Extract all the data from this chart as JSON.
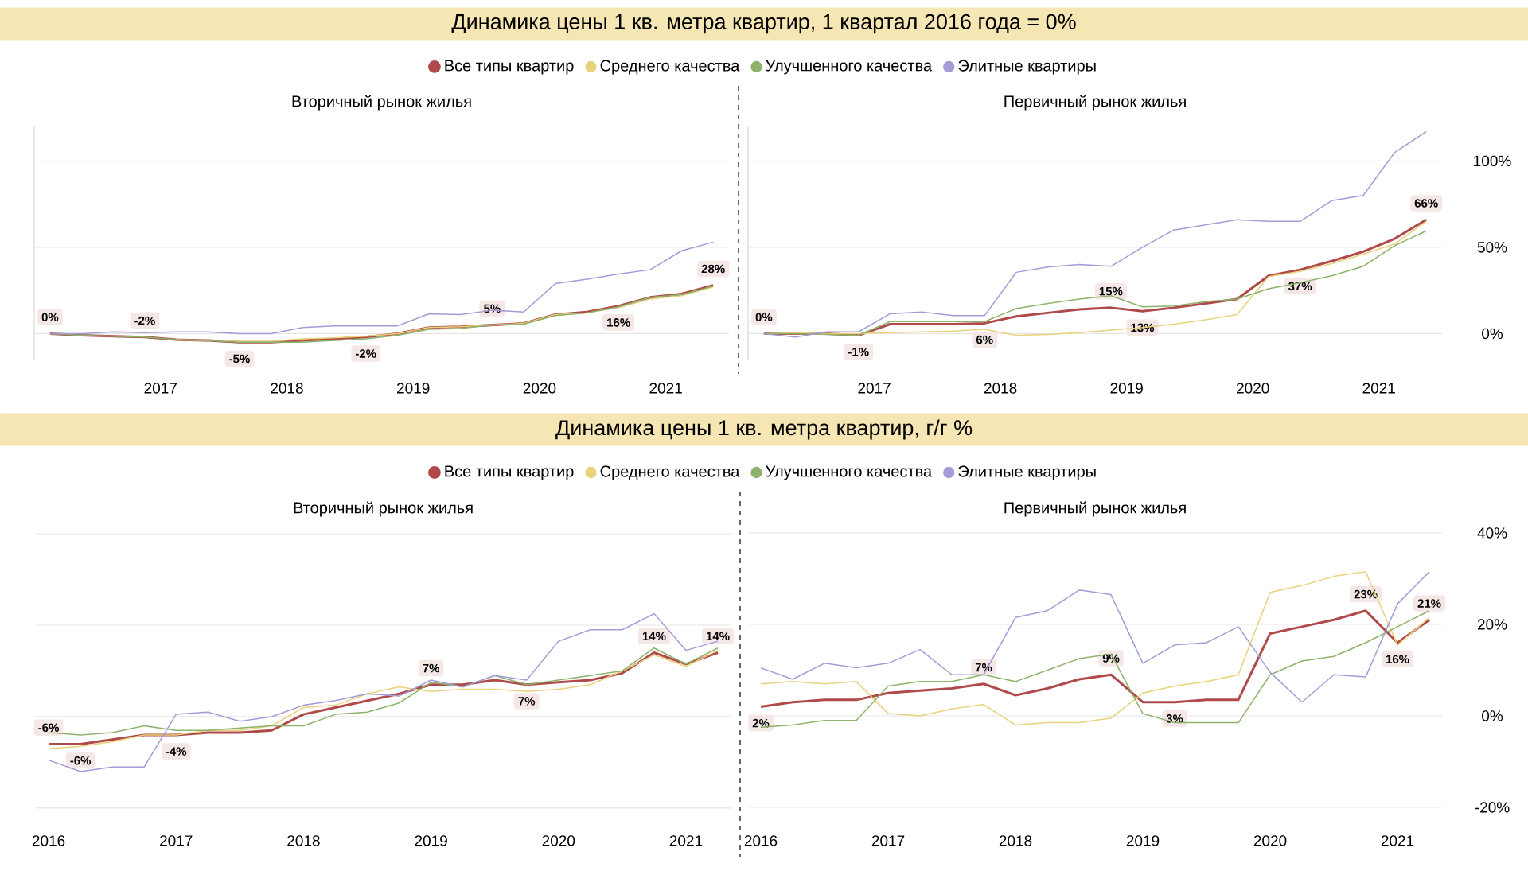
{
  "chart_data": [
    {
      "type": "line",
      "title": "Динамика цены 1 кв. метра квартир, 1 квартал 2016 года = 0%",
      "subtitle": "Вторичный рынок жилья",
      "legend": "top",
      "grid": "y",
      "tick_labels": "x",
      "x": [
        2016.125,
        2016.375,
        2016.625,
        2016.875,
        2017.125,
        2017.375,
        2017.625,
        2017.875,
        2018.125,
        2018.375,
        2018.625,
        2018.875,
        2019.125,
        2019.375,
        2019.625,
        2019.875,
        2020.125,
        2020.375,
        2020.625,
        2020.875,
        2021.125,
        2021.375
      ],
      "xlim": [
        2016,
        2021.5
      ],
      "xticks": [
        2017,
        2018,
        2019,
        2020,
        2021
      ],
      "ylim": [
        -15,
        120
      ],
      "yticks": [
        {
          "value": 0,
          "label": null
        },
        {
          "value": 50,
          "label": null
        },
        {
          "value": 100,
          "label": null
        }
      ],
      "series": [
        {
          "name": "Все типы квартир",
          "color": "#b04a4a",
          "values": [
            0,
            -1,
            -1.5,
            -2,
            -3.5,
            -4,
            -5,
            -5,
            -4,
            -3,
            -2,
            0,
            3.5,
            4,
            5,
            6,
            11,
            12.5,
            16,
            21,
            23,
            28
          ],
          "value_labels": [
            "0%",
            null,
            null,
            "-2%",
            null,
            null,
            "-5%",
            null,
            null,
            null,
            "-2%",
            null,
            null,
            null,
            "5%",
            null,
            null,
            null,
            "16%",
            null,
            null,
            "28%"
          ]
        },
        {
          "name": "Среднего качества",
          "color": "#e8d27a",
          "values": [
            null,
            null,
            null,
            null,
            -3.5,
            -4,
            -4.5,
            -4.5,
            -3,
            -2.5,
            -1.5,
            0,
            3.5,
            4,
            5,
            6,
            11,
            12,
            15,
            20,
            22,
            27
          ]
        },
        {
          "name": "Улучшенного качества",
          "color": "#8cb369",
          "values": [
            0,
            -1,
            -1.5,
            -2,
            -3.5,
            -4,
            -5,
            -5,
            -5,
            -4,
            -3,
            -1,
            2.5,
            3,
            5,
            5.5,
            10.5,
            12,
            15.5,
            21,
            22.5,
            27.5
          ]
        },
        {
          "name": "Элитные квартиры",
          "color": "#a59bd6",
          "values": [
            0,
            0,
            1,
            0.5,
            1,
            1,
            0,
            0,
            3.5,
            4.5,
            4.5,
            4.5,
            11.5,
            11,
            13.5,
            12.5,
            29,
            31.5,
            34.5,
            37,
            48,
            53
          ]
        }
      ]
    },
    {
      "type": "line",
      "title": "Первичный рынок жилья",
      "grid": "y",
      "x": [
        2016.125,
        2016.375,
        2016.625,
        2016.875,
        2017.125,
        2017.375,
        2017.625,
        2017.875,
        2018.125,
        2018.375,
        2018.625,
        2018.875,
        2019.125,
        2019.375,
        2019.625,
        2019.875,
        2020.125,
        2020.375,
        2020.625,
        2020.875,
        2021.125,
        2021.375
      ],
      "xlim": [
        2016,
        2021.5
      ],
      "xticks": [
        2017,
        2018,
        2019,
        2020,
        2021
      ],
      "ylim": [
        -15,
        120
      ],
      "yticks": [
        {
          "value": 0,
          "label": "0%"
        },
        {
          "value": 50,
          "label": "50%"
        },
        {
          "value": 100,
          "label": "100%"
        }
      ],
      "series": [
        {
          "color": "#b04a4a",
          "values": [
            0,
            0,
            0,
            -1,
            5.5,
            5.5,
            5.5,
            6,
            10,
            12,
            14,
            15,
            13,
            15,
            17.5,
            20,
            33.5,
            37,
            42,
            47.5,
            55,
            66
          ],
          "value_labels": [
            "0%",
            null,
            null,
            "-1%",
            null,
            null,
            null,
            "6%",
            null,
            null,
            null,
            "15%",
            "13%",
            null,
            null,
            null,
            null,
            "37%",
            null,
            null,
            null,
            "66%"
          ]
        },
        {
          "color": "#e8d27a",
          "values": [
            0,
            0.5,
            0,
            0,
            0.5,
            1,
            1.5,
            2.5,
            -1,
            -0.5,
            0.5,
            2,
            3.5,
            5.5,
            8,
            11,
            33,
            36,
            40.5,
            46,
            52,
            65
          ]
        },
        {
          "color": "#8cb369",
          "values": [
            0,
            0,
            -0.5,
            -1,
            7,
            7,
            7,
            7,
            14.5,
            17.5,
            20,
            22,
            15.5,
            16,
            18.5,
            20,
            26,
            29.5,
            33.5,
            39,
            51,
            59.5
          ]
        },
        {
          "color": "#a59bd6",
          "values": [
            0,
            -2,
            1,
            1,
            11.5,
            12.5,
            10.5,
            10.5,
            35.5,
            38.5,
            40,
            39,
            50,
            60,
            63,
            66,
            65,
            65,
            77,
            80,
            105,
            117
          ]
        }
      ]
    },
    {
      "type": "line",
      "title": "Динамика цены 1 кв. метра квартир, г/г %",
      "subtitle": "Вторичный рынок жилья",
      "legend": "top",
      "grid": "y",
      "tick_labels": "x",
      "x": [
        2016,
        2016.25,
        2016.5,
        2016.75,
        2017,
        2017.25,
        2017.5,
        2017.75,
        2018,
        2018.25,
        2018.5,
        2018.75,
        2019,
        2019.25,
        2019.5,
        2019.75,
        2020,
        2020.25,
        2020.5,
        2020.75,
        2021,
        2021.25
      ],
      "xlim": [
        2015.9,
        2021.35
      ],
      "xticks": [
        2016,
        2017,
        2018,
        2019,
        2020,
        2021
      ],
      "ylim": [
        -20,
        40
      ],
      "yticks": [
        {
          "value": -20,
          "label": null
        },
        {
          "value": 0,
          "label": null
        },
        {
          "value": 20,
          "label": null
        },
        {
          "value": 40,
          "label": null
        }
      ],
      "series": [
        {
          "name": "Все типы квартир",
          "color": "#b04a4a",
          "values": [
            -6,
            -6,
            -5,
            -4,
            -4,
            -3.5,
            -3.5,
            -3,
            0.5,
            2,
            3.5,
            5,
            7,
            7,
            8,
            7,
            7.5,
            8,
            9.5,
            14,
            11.5,
            14
          ],
          "value_labels": [
            "-6%",
            "-6%",
            null,
            null,
            "-4%",
            null,
            null,
            null,
            null,
            null,
            null,
            null,
            "7%",
            null,
            null,
            "7%",
            null,
            null,
            null,
            "14%",
            null,
            "14%"
          ]
        },
        {
          "name": "Среднего качества",
          "color": "#e8d27a",
          "values": [
            -7,
            -6.5,
            -5.5,
            -4,
            -4,
            -3,
            -3,
            -2,
            2,
            2.5,
            5,
            6.5,
            5.5,
            6,
            6,
            5.5,
            6,
            7,
            10,
            13.5,
            11,
            14.5
          ]
        },
        {
          "name": "Улучшенного качества",
          "color": "#8cb369",
          "values": [
            -3.5,
            -4,
            -3.5,
            -2,
            -3,
            -3,
            -2.5,
            -2,
            -2,
            0.5,
            1,
            3,
            7.5,
            6.5,
            9,
            7,
            8,
            9,
            10,
            15,
            11.5,
            15
          ]
        },
        {
          "name": "Элитные квартиры",
          "color": "#a59bd6",
          "values": [
            -9.5,
            -12,
            -11,
            -11,
            0.5,
            1,
            -1,
            0,
            2.5,
            3.5,
            5,
            4.5,
            8,
            6.5,
            9,
            8,
            16.5,
            19,
            19,
            22.5,
            14.5,
            16.5
          ]
        }
      ]
    },
    {
      "type": "line",
      "title": "Первичный рынок жилья",
      "grid": "y",
      "x": [
        2016,
        2016.25,
        2016.5,
        2016.75,
        2017,
        2017.25,
        2017.5,
        2017.75,
        2018,
        2018.25,
        2018.5,
        2018.75,
        2019,
        2019.25,
        2019.5,
        2019.75,
        2020,
        2020.25,
        2020.5,
        2020.75,
        2021,
        2021.25
      ],
      "xlim": [
        2015.9,
        2021.35
      ],
      "xticks": [
        2016,
        2017,
        2018,
        2019,
        2020,
        2021
      ],
      "ylim": [
        -20,
        40
      ],
      "yticks": [
        {
          "value": -20,
          "label": "-20%"
        },
        {
          "value": 0,
          "label": "0%"
        },
        {
          "value": 20,
          "label": "20%"
        },
        {
          "value": 40,
          "label": "40%"
        }
      ],
      "series": [
        {
          "color": "#b04a4a",
          "values": [
            2,
            3,
            3.5,
            3.5,
            5,
            5.5,
            6,
            7,
            4.5,
            6,
            8,
            9,
            3,
            3,
            3.5,
            3.5,
            18,
            19.5,
            21,
            23,
            16,
            21
          ],
          "value_labels": [
            "2%",
            null,
            null,
            null,
            null,
            null,
            null,
            "7%",
            null,
            null,
            null,
            "9%",
            null,
            "3%",
            null,
            null,
            null,
            null,
            null,
            "23%",
            "16%",
            "21%"
          ]
        },
        {
          "color": "#e8d27a",
          "values": [
            7,
            7.5,
            7,
            7.5,
            0.5,
            0,
            1.5,
            2.5,
            -2,
            -1.5,
            -1.5,
            -0.5,
            5,
            6.5,
            7.5,
            9,
            27,
            28.5,
            30.5,
            31.5,
            15.5,
            21.5
          ]
        },
        {
          "color": "#8cb369",
          "values": [
            -2.5,
            -2,
            -1,
            -1,
            6.5,
            7.5,
            7.5,
            9,
            7.5,
            10,
            12.5,
            13.5,
            0.5,
            -1.5,
            -1.5,
            -1.5,
            9,
            12,
            13,
            16,
            19.5,
            23
          ]
        },
        {
          "color": "#a59bd6",
          "values": [
            10.5,
            8,
            11.5,
            10.5,
            11.5,
            14.5,
            9,
            9,
            21.5,
            23,
            27.5,
            26.5,
            11.5,
            15.5,
            16,
            19.5,
            9.5,
            3,
            9,
            8.5,
            24.5,
            31.5
          ]
        }
      ]
    }
  ]
}
